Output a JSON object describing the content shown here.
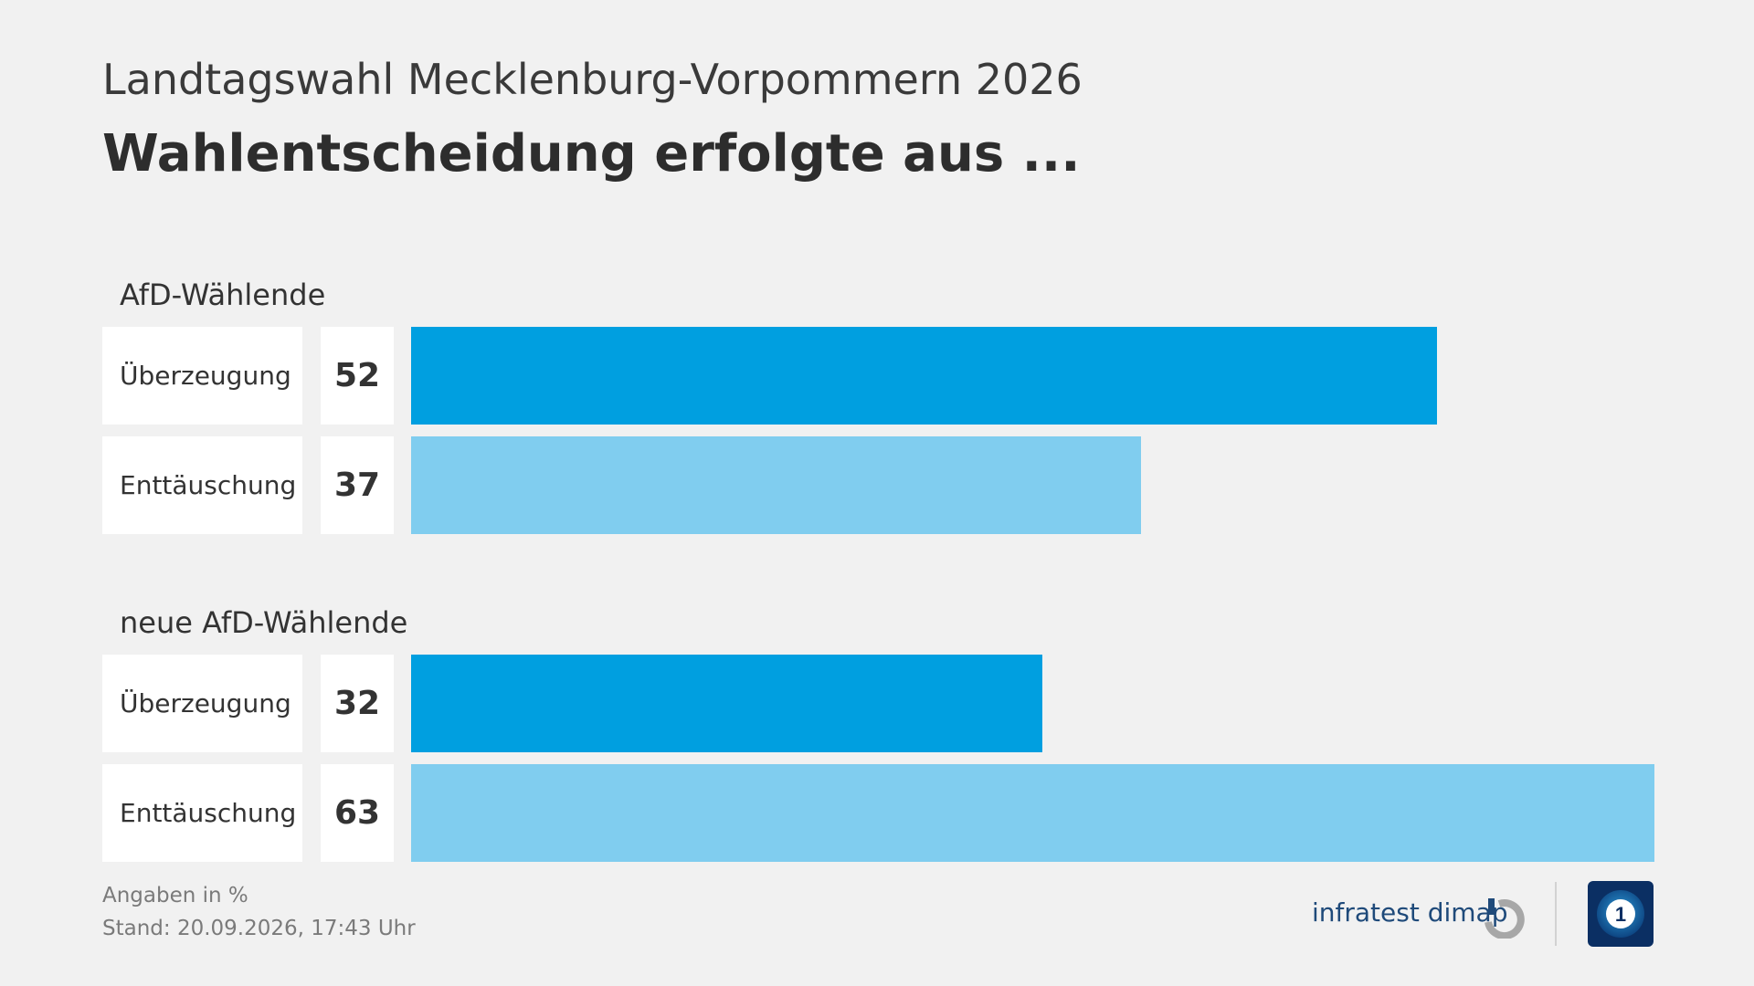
{
  "header": {
    "supertitle": "Landtagswahl Mecklenburg-Vorpommern 2026",
    "title": "Wahlentscheidung erfolgte aus ..."
  },
  "chart_data": {
    "type": "bar",
    "orientation": "horizontal",
    "title": "Wahlentscheidung erfolgte aus ...",
    "xlim": [
      0,
      63
    ],
    "groups": [
      {
        "label": "AfD-Wählende",
        "items": [
          {
            "category": "Überzeugung",
            "value": 52,
            "color": "#009fe0"
          },
          {
            "category": "Enttäuschung",
            "value": 37,
            "color": "#80cdef"
          }
        ]
      },
      {
        "label": "neue AfD-Wählende",
        "items": [
          {
            "category": "Überzeugung",
            "value": 32,
            "color": "#009fe0"
          },
          {
            "category": "Enttäuschung",
            "value": 63,
            "color": "#80cdef"
          }
        ]
      }
    ]
  },
  "footer": {
    "unit_note": "Angaben in %",
    "stand": "Stand:  20.09.2026, 17:43 Uhr",
    "brand": "infratest dimap",
    "logo_icons": [
      "infratest-dimap-logo-icon",
      "tagesschau-ard-logo-icon"
    ]
  }
}
